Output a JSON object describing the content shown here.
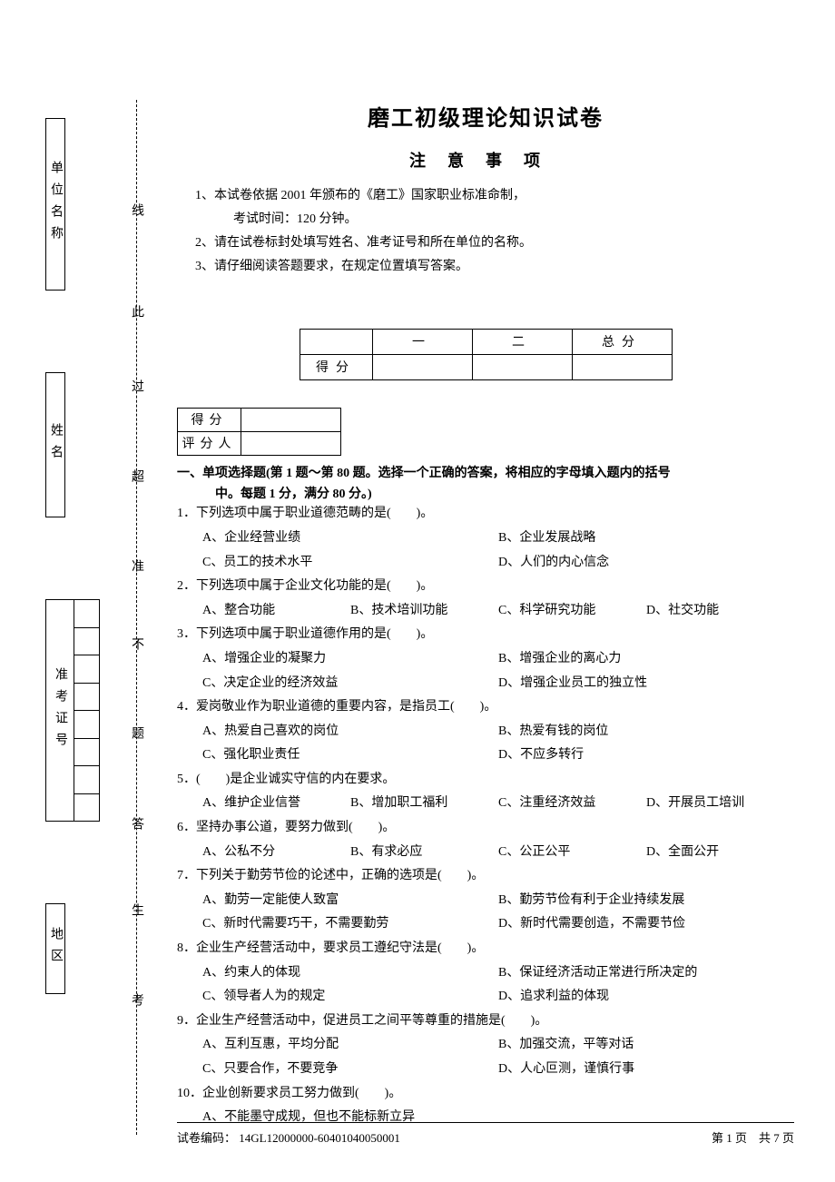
{
  "title": "磨工初级理论知识试卷",
  "subtitle": "注意事项",
  "side_labels": {
    "box1": "单位名称",
    "box2": "姓名",
    "box3": "准考证号",
    "box4": "地区"
  },
  "dashed_chars": {
    "c1": "线",
    "c2": "此",
    "c3": "过",
    "c4": "超",
    "c5": "准",
    "c6": "不",
    "c7": "题",
    "c8": "答",
    "c9": "生",
    "c10": "考"
  },
  "notes": {
    "n1": "1、本试卷依据 2001 年颁布的《磨工》国家职业标准命制，",
    "n1b": "考试时间：120 分钟。",
    "n2": "2、请在试卷标封处填写姓名、准考证号和所在单位的名称。",
    "n3": "3、请仔细阅读答题要求，在规定位置填写答案。"
  },
  "score_table": {
    "row1": {
      "label": "",
      "col1": "一",
      "col2": "二",
      "total": "总分"
    },
    "row2_label": "得分"
  },
  "mini_table": {
    "defen": "得分",
    "pingfenren": "评分人"
  },
  "section": {
    "line1": "一、单项选择题(第 1 题～第 80 题。选择一个正确的答案，将相应的字母填入题内的括号",
    "line2": "中。每题 1 分，满分 80 分。)"
  },
  "questions": [
    {
      "num": "1",
      "stem": "下列选项中属于职业道德范畴的是(　　)。",
      "opts": [
        {
          "l": "A、",
          "t": "企业经营业绩",
          "w": "half"
        },
        {
          "l": "B、",
          "t": "企业发展战略",
          "w": "half"
        },
        {
          "l": "C、",
          "t": "员工的技术水平",
          "w": "half"
        },
        {
          "l": "D、",
          "t": "人们的内心信念",
          "w": "half"
        }
      ]
    },
    {
      "num": "2",
      "stem": "下列选项中属于企业文化功能的是(　　)。",
      "opts": [
        {
          "l": "A、",
          "t": "整合功能",
          "w": "quarter"
        },
        {
          "l": "B、",
          "t": "技术培训功能",
          "w": "quarter"
        },
        {
          "l": "C、",
          "t": "科学研究功能",
          "w": "quarter"
        },
        {
          "l": "D、",
          "t": "社交功能",
          "w": "quarter"
        }
      ]
    },
    {
      "num": "3",
      "stem": "下列选项中属于职业道德作用的是(　　)。",
      "opts": [
        {
          "l": "A、",
          "t": "增强企业的凝聚力",
          "w": "half"
        },
        {
          "l": "B、",
          "t": "增强企业的离心力",
          "w": "half"
        },
        {
          "l": "C、",
          "t": "决定企业的经济效益",
          "w": "half"
        },
        {
          "l": "D、",
          "t": "增强企业员工的独立性",
          "w": "half"
        }
      ]
    },
    {
      "num": "4",
      "stem": "爱岗敬业作为职业道德的重要内容，是指员工(　　)。",
      "opts": [
        {
          "l": "A、",
          "t": "热爱自己喜欢的岗位",
          "w": "half"
        },
        {
          "l": "B、",
          "t": "热爱有钱的岗位",
          "w": "half"
        },
        {
          "l": "C、",
          "t": "强化职业责任",
          "w": "half"
        },
        {
          "l": "D、",
          "t": "不应多转行",
          "w": "half"
        }
      ]
    },
    {
      "num": "5",
      "stem": "(　　)是企业诚实守信的内在要求。",
      "opts": [
        {
          "l": "A、",
          "t": "维护企业信誉",
          "w": "quarter"
        },
        {
          "l": "B、",
          "t": "增加职工福利",
          "w": "quarter"
        },
        {
          "l": "C、",
          "t": "注重经济效益",
          "w": "quarter"
        },
        {
          "l": "D、",
          "t": "开展员工培训",
          "w": "quarter"
        }
      ]
    },
    {
      "num": "6",
      "stem": "坚持办事公道，要努力做到(　　)。",
      "opts": [
        {
          "l": "A、",
          "t": "公私不分",
          "w": "quarter"
        },
        {
          "l": "B、",
          "t": "有求必应",
          "w": "quarter"
        },
        {
          "l": "C、",
          "t": "公正公平",
          "w": "quarter"
        },
        {
          "l": "D、",
          "t": "全面公开",
          "w": "quarter"
        }
      ]
    },
    {
      "num": "7",
      "stem": "下列关于勤劳节俭的论述中，正确的选项是(　　)。",
      "opts": [
        {
          "l": "A、",
          "t": "勤劳一定能使人致富",
          "w": "half"
        },
        {
          "l": "B、",
          "t": "勤劳节俭有利于企业持续发展",
          "w": "half"
        },
        {
          "l": "C、",
          "t": "新时代需要巧干，不需要勤劳",
          "w": "half"
        },
        {
          "l": "D、",
          "t": "新时代需要创造，不需要节俭",
          "w": "half"
        }
      ]
    },
    {
      "num": "8",
      "stem": "企业生产经营活动中，要求员工遵纪守法是(　　)。",
      "opts": [
        {
          "l": "A、",
          "t": "约束人的体现",
          "w": "half"
        },
        {
          "l": "B、",
          "t": "保证经济活动正常进行所决定的",
          "w": "half"
        },
        {
          "l": "C、",
          "t": "领导者人为的规定",
          "w": "half"
        },
        {
          "l": "D、",
          "t": "追求利益的体现",
          "w": "half"
        }
      ]
    },
    {
      "num": "9",
      "stem": "企业生产经营活动中，促进员工之间平等尊重的措施是(　　)。",
      "opts": [
        {
          "l": "A、",
          "t": "互利互惠，平均分配",
          "w": "half"
        },
        {
          "l": "B、",
          "t": "加强交流，平等对话",
          "w": "half"
        },
        {
          "l": "C、",
          "t": "只要合作，不要竞争",
          "w": "half"
        },
        {
          "l": "D、",
          "t": "人心叵测，谨慎行事",
          "w": "half"
        }
      ]
    },
    {
      "num": "10",
      "stem": "企业创新要求员工努力做到(　　)。",
      "opts": [
        {
          "l": "A、",
          "t": "不能墨守成规，但也不能标新立异",
          "w": "full"
        }
      ]
    }
  ],
  "footer": {
    "left": "试卷编码： 14GL12000000-60401040050001",
    "right": "第 1 页　共 7 页"
  }
}
